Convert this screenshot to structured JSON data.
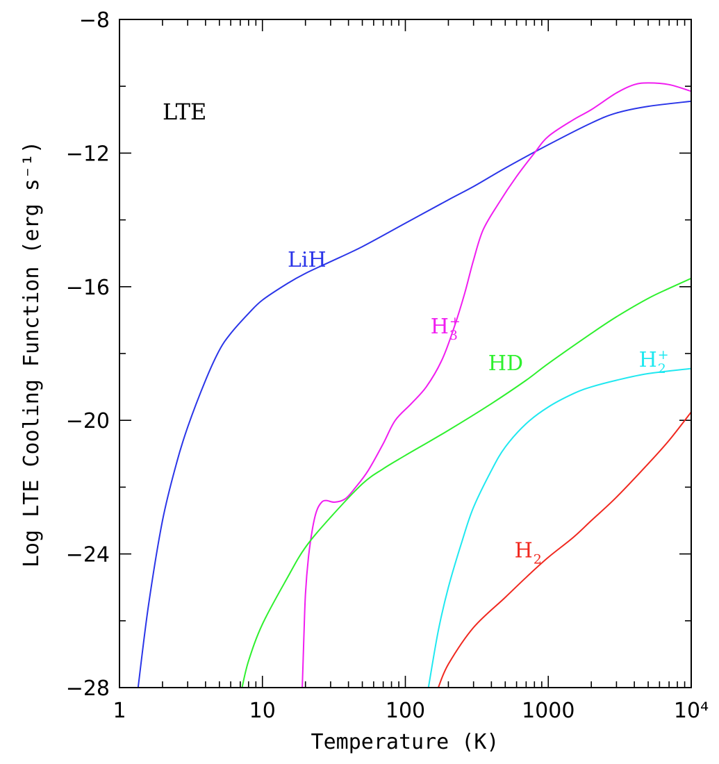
{
  "chart_data": {
    "type": "line",
    "panel_label": "LTE",
    "xlabel": "Temperature (K)",
    "ylabel": "Log LTE Cooling Function (erg s⁻¹)",
    "xscale": "log",
    "xlim": [
      1,
      10000
    ],
    "ylim": [
      -28,
      -8
    ],
    "x_tick_values": [
      1,
      10,
      100,
      1000,
      10000
    ],
    "x_tick_labels": [
      "1",
      "10",
      "100",
      "1000",
      "10⁴"
    ],
    "y_tick_values": [
      -8,
      -12,
      -16,
      -20,
      -24,
      -28
    ],
    "y_tick_labels": [
      "−8",
      "−12",
      "−16",
      "−20",
      "−24",
      "−28"
    ],
    "grid": false,
    "series": [
      {
        "name": "LiH",
        "label_main": "LiH",
        "label_sub": "",
        "label_sup": "",
        "label_at": [
          15,
          -15.4
        ],
        "color": "#2a35e8",
        "points": [
          [
            1.35,
            -28
          ],
          [
            1.6,
            -25.5
          ],
          [
            2,
            -23
          ],
          [
            2.5,
            -21.3
          ],
          [
            3,
            -20.2
          ],
          [
            4,
            -18.8
          ],
          [
            5,
            -17.9
          ],
          [
            6,
            -17.4
          ],
          [
            8,
            -16.8
          ],
          [
            10,
            -16.4
          ],
          [
            15,
            -15.9
          ],
          [
            20,
            -15.6
          ],
          [
            30,
            -15.25
          ],
          [
            50,
            -14.8
          ],
          [
            100,
            -14.1
          ],
          [
            200,
            -13.4
          ],
          [
            300,
            -13.0
          ],
          [
            500,
            -12.45
          ],
          [
            1000,
            -11.75
          ],
          [
            2000,
            -11.1
          ],
          [
            3000,
            -10.8
          ],
          [
            5000,
            -10.6
          ],
          [
            10000,
            -10.45
          ]
        ]
      },
      {
        "name": "H3+",
        "label_main": "H",
        "label_sub": "3",
        "label_sup": "+",
        "label_at": [
          150,
          -17.4
        ],
        "color": "#f01df0",
        "points": [
          [
            19,
            -28
          ],
          [
            19.5,
            -26.5
          ],
          [
            20,
            -25.2
          ],
          [
            21,
            -24.1
          ],
          [
            22.5,
            -23.2
          ],
          [
            24,
            -22.7
          ],
          [
            26,
            -22.45
          ],
          [
            28,
            -22.4
          ],
          [
            32,
            -22.45
          ],
          [
            38,
            -22.35
          ],
          [
            45,
            -22.0
          ],
          [
            55,
            -21.5
          ],
          [
            70,
            -20.7
          ],
          [
            85,
            -20.0
          ],
          [
            110,
            -19.5
          ],
          [
            140,
            -19.0
          ],
          [
            180,
            -18.2
          ],
          [
            220,
            -17.2
          ],
          [
            260,
            -16.2
          ],
          [
            300,
            -15.2
          ],
          [
            350,
            -14.3
          ],
          [
            450,
            -13.5
          ],
          [
            600,
            -12.7
          ],
          [
            800,
            -12.0
          ],
          [
            1000,
            -11.5
          ],
          [
            1500,
            -11.0
          ],
          [
            2000,
            -10.7
          ],
          [
            3000,
            -10.2
          ],
          [
            4000,
            -9.95
          ],
          [
            5000,
            -9.9
          ],
          [
            7000,
            -9.95
          ],
          [
            10000,
            -10.15
          ]
        ]
      },
      {
        "name": "HD",
        "label_main": "HD",
        "label_sub": "",
        "label_sup": "",
        "label_at": [
          380,
          -18.5
        ],
        "color": "#2ef02e",
        "points": [
          [
            7.2,
            -28
          ],
          [
            8,
            -27.2
          ],
          [
            10,
            -26.1
          ],
          [
            15,
            -24.7
          ],
          [
            20,
            -23.8
          ],
          [
            30,
            -22.9
          ],
          [
            50,
            -21.9
          ],
          [
            70,
            -21.45
          ],
          [
            100,
            -21.05
          ],
          [
            200,
            -20.3
          ],
          [
            400,
            -19.5
          ],
          [
            700,
            -18.8
          ],
          [
            1000,
            -18.3
          ],
          [
            2000,
            -17.4
          ],
          [
            3000,
            -16.9
          ],
          [
            5000,
            -16.35
          ],
          [
            7000,
            -16.05
          ],
          [
            10000,
            -15.75
          ]
        ]
      },
      {
        "name": "H2+",
        "label_main": "H",
        "label_sub": "2",
        "label_sup": "+",
        "label_at": [
          4300,
          -18.4
        ],
        "color": "#1fe8f0",
        "points": [
          [
            145,
            -28
          ],
          [
            170,
            -26.3
          ],
          [
            200,
            -25.0
          ],
          [
            250,
            -23.6
          ],
          [
            300,
            -22.6
          ],
          [
            400,
            -21.5
          ],
          [
            500,
            -20.8
          ],
          [
            700,
            -20.1
          ],
          [
            1000,
            -19.6
          ],
          [
            1500,
            -19.2
          ],
          [
            2000,
            -19.0
          ],
          [
            3000,
            -18.8
          ],
          [
            5000,
            -18.6
          ],
          [
            10000,
            -18.45
          ]
        ]
      },
      {
        "name": "H2",
        "label_main": "H",
        "label_sub": "2",
        "label_sup": "",
        "label_at": [
          580,
          -24.1
        ],
        "color": "#f0281f",
        "points": [
          [
            170,
            -28
          ],
          [
            200,
            -27.3
          ],
          [
            300,
            -26.2
          ],
          [
            500,
            -25.3
          ],
          [
            700,
            -24.7
          ],
          [
            1000,
            -24.1
          ],
          [
            1500,
            -23.5
          ],
          [
            2000,
            -23.0
          ],
          [
            3000,
            -22.3
          ],
          [
            5000,
            -21.3
          ],
          [
            7000,
            -20.6
          ],
          [
            10000,
            -19.75
          ]
        ]
      }
    ]
  }
}
